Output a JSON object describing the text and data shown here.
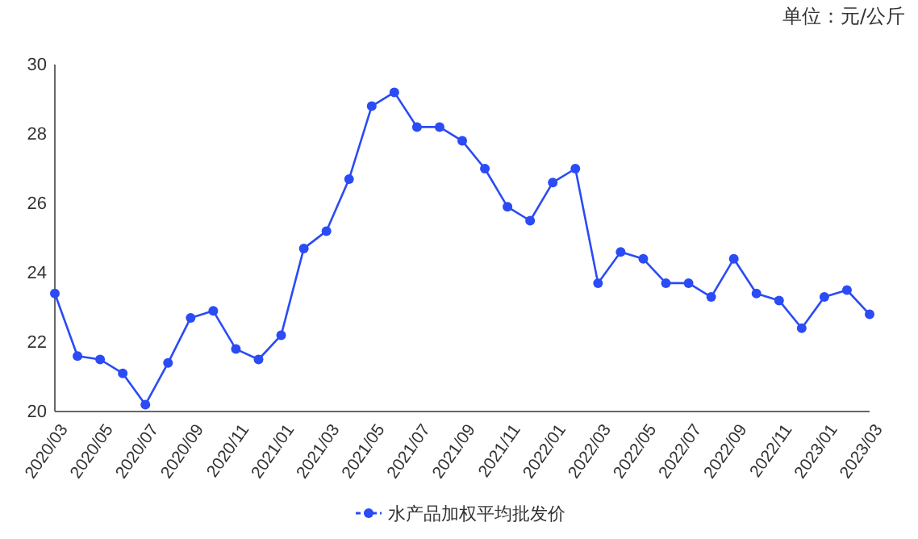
{
  "chart_data": {
    "type": "line",
    "annotations": [
      "单位：元/公斤"
    ],
    "categories": [
      "2020/03",
      null,
      "2020/05",
      null,
      "2020/07",
      null,
      "2020/09",
      null,
      "2020/11",
      null,
      "2021/01",
      null,
      "2021/03",
      null,
      "2021/05",
      null,
      "2021/07",
      null,
      "2021/09",
      null,
      "2021/11",
      null,
      "2022/01",
      null,
      "2022/03",
      null,
      "2022/05",
      null,
      "2022/07",
      null,
      "2022/09",
      null,
      "2022/11",
      null,
      "2023/01",
      null,
      "2023/03"
    ],
    "series": [
      {
        "name": "水产品加权平均批发价",
        "color": "#2a4bf5",
        "values": [
          23.4,
          21.6,
          21.5,
          21.1,
          20.2,
          21.4,
          22.7,
          22.9,
          21.8,
          21.5,
          22.2,
          24.7,
          25.2,
          26.7,
          28.8,
          29.2,
          28.2,
          28.2,
          27.8,
          27.0,
          25.9,
          25.5,
          26.6,
          27.0,
          23.7,
          24.6,
          24.4,
          23.7,
          23.7,
          23.3,
          24.4,
          23.4,
          23.2,
          22.4,
          23.3,
          23.5,
          22.8
        ]
      }
    ],
    "ylim": [
      20,
      30
    ],
    "yticks": [
      20,
      22,
      24,
      26,
      28,
      30
    ],
    "grid": false,
    "legend": "bottom",
    "marker": "circle",
    "line_style": "solid"
  }
}
